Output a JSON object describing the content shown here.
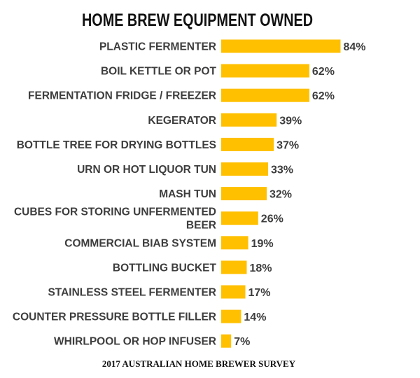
{
  "chart_data": {
    "type": "bar",
    "orientation": "horizontal",
    "title": "HOME BREW EQUIPMENT OWNED",
    "footer": "2017 AUSTRALIAN HOME BREWER SURVEY",
    "categories": [
      "PLASTIC FERMENTER",
      "BOIL KETTLE OR POT",
      "FERMENTATION FRIDGE / FREEZER",
      "KEGERATOR",
      "BOTTLE TREE FOR DRYING BOTTLES",
      "URN OR HOT LIQUOR TUN",
      "MASH TUN",
      "CUBES FOR STORING UNFERMENTED BEER",
      "COMMERCIAL BIAB SYSTEM",
      "BOTTLING BUCKET",
      "STAINLESS STEEL FERMENTER",
      "COUNTER PRESSURE BOTTLE FILLER",
      "WHIRLPOOL OR HOP INFUSER"
    ],
    "values": [
      84,
      62,
      62,
      39,
      37,
      33,
      32,
      26,
      19,
      18,
      17,
      14,
      7
    ],
    "value_labels": [
      "84%",
      "62%",
      "62%",
      "39%",
      "37%",
      "33%",
      "32%",
      "26%",
      "19%",
      "18%",
      "17%",
      "14%",
      "7%"
    ],
    "bar_color": "#FFC000",
    "text_color": "#3d3d3d",
    "grid": false,
    "legend": "none"
  }
}
